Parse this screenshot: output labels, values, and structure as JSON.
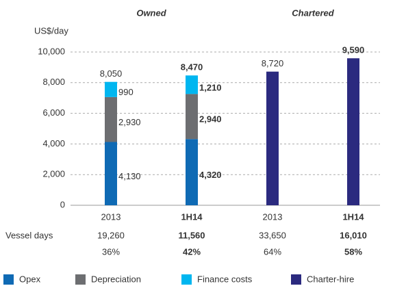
{
  "chart_data": {
    "type": "stacked_bar",
    "y_label": "US$/day",
    "groups": [
      {
        "label": "Owned",
        "categories": [
          0,
          1
        ]
      },
      {
        "label": "Chartered",
        "categories": [
          2,
          3
        ]
      }
    ],
    "categories": [
      "2013",
      "1H14",
      "2013",
      "1H14"
    ],
    "bold": [
      false,
      true,
      false,
      true
    ],
    "series": [
      {
        "name": "Opex",
        "color": "#0f6ab4",
        "values": [
          4130,
          4320,
          null,
          null
        ],
        "value_labels": [
          "4,130",
          "4,320",
          null,
          null
        ]
      },
      {
        "name": "Depreciation",
        "color": "#6d6e71",
        "values": [
          2930,
          2940,
          null,
          null
        ],
        "value_labels": [
          "2,930",
          "2,940",
          null,
          null
        ]
      },
      {
        "name": "Finance costs",
        "color": "#00b6f0",
        "values": [
          990,
          1210,
          null,
          null
        ],
        "value_labels": [
          "990",
          "1,210",
          null,
          null
        ]
      },
      {
        "name": "Charter-hire",
        "color": "#2b2a7f",
        "values": [
          null,
          null,
          8720,
          9590
        ],
        "value_labels": [
          null,
          null,
          "8,720",
          "9,590"
        ]
      }
    ],
    "totals": [
      8050,
      8470,
      null,
      null
    ],
    "total_labels": [
      "8,050",
      "8,470",
      null,
      null
    ],
    "ylim": [
      0,
      10000
    ],
    "yticks": [
      0,
      {
        "value": 2000,
        "label": "2,000"
      },
      {
        "value": 4000,
        "label": "4,000"
      },
      {
        "value": 6000,
        "label": "6,000"
      },
      {
        "value": 8000,
        "label": "8,000"
      },
      {
        "value": 10000,
        "label": "10,000"
      }
    ],
    "grid": true,
    "vessel_days": {
      "label": "Vessel days",
      "values": [
        19260,
        11560,
        33650,
        16010
      ],
      "value_labels": [
        "19,260",
        "11,560",
        "33,650",
        "16,010"
      ]
    },
    "shares": {
      "values": [
        36,
        42,
        64,
        58
      ],
      "value_labels": [
        "36%",
        "42%",
        "64%",
        "58%"
      ]
    }
  }
}
